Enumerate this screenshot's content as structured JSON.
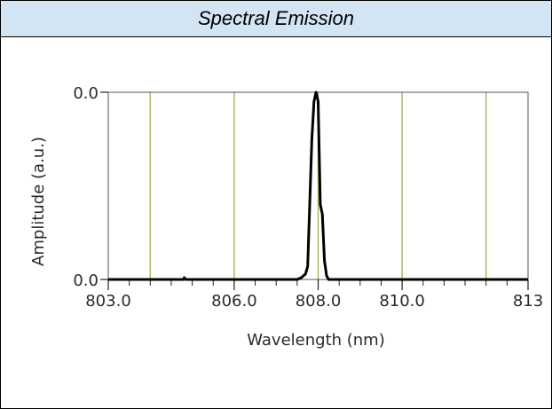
{
  "header": {
    "title": "Spectral Emission"
  },
  "chart_data": {
    "type": "line",
    "title": "",
    "xlabel": "Wavelength (nm)",
    "ylabel": "Amplitude (a.u.)",
    "xlim": [
      803.0,
      813.0
    ],
    "ylim": [
      0,
      1
    ],
    "y_tick_labels": [
      "0.0",
      "0.0"
    ],
    "x_tick_labels": [
      {
        "value": 803.0,
        "label": "803.0"
      },
      {
        "value": 806.0,
        "label": "806.0"
      },
      {
        "value": 808.0,
        "label": "808.0"
      },
      {
        "value": 810.0,
        "label": "810.0"
      },
      {
        "value": 813.0,
        "label": "813"
      }
    ],
    "vertical_gridlines": [
      804.0,
      806.0,
      808.0,
      810.0,
      812.0
    ],
    "gridline_color": "#b5b560",
    "line_color": "#000000",
    "series": [
      {
        "x": [
          803.0,
          804.8,
          804.81,
          804.85,
          805.5,
          806.8,
          807.5,
          807.6,
          807.7,
          807.75,
          807.8,
          807.85,
          807.9,
          807.95,
          808.0,
          808.05,
          808.1,
          808.15,
          808.2,
          808.25,
          808.3,
          808.5,
          809.0,
          810.5,
          812.0,
          813.0
        ],
        "y": [
          0.0,
          0.0,
          0.01,
          0.0,
          0.0,
          0.0,
          0.0,
          0.01,
          0.03,
          0.07,
          0.4,
          0.75,
          0.95,
          1.0,
          0.95,
          0.4,
          0.35,
          0.1,
          0.02,
          0.0,
          0.0,
          0.0,
          0.0,
          0.0,
          0.0,
          0.0
        ]
      }
    ]
  }
}
